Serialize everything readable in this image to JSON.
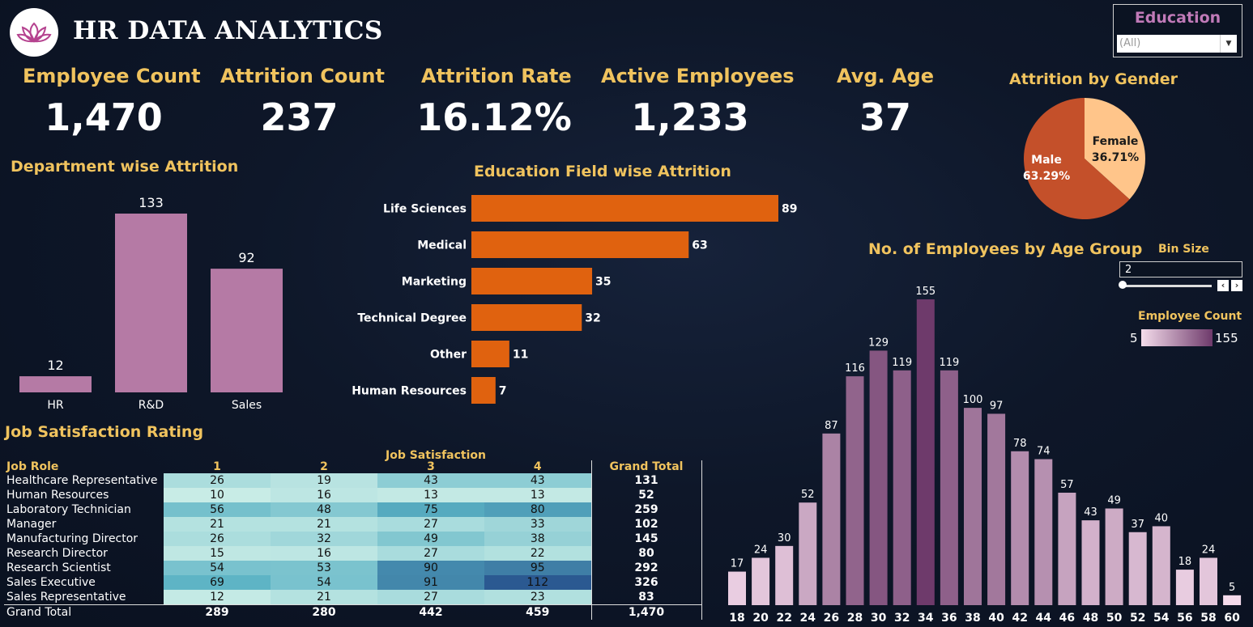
{
  "header": {
    "title": "HR DATA ANALYTICS"
  },
  "kpis": [
    {
      "label": "Employee Count",
      "value": "1,470"
    },
    {
      "label": "Attrition Count",
      "value": "237"
    },
    {
      "label": "Attrition Rate",
      "value": "16.12%"
    },
    {
      "label": "Active Employees",
      "value": "1,233"
    },
    {
      "label": "Avg. Age",
      "value": "37"
    }
  ],
  "filter": {
    "title": "Education",
    "selected": "(All)"
  },
  "bin": {
    "title": "Bin Size",
    "value": "2"
  },
  "legend": {
    "title": "Employee Count",
    "min": "5",
    "max": "155"
  },
  "colors": {
    "gold": "#f0c35e",
    "dept_bar": "#b57aa5",
    "edu_bar": "#e0620f",
    "male": "#c4502a",
    "female": "#ffc58a"
  },
  "chart_data": [
    {
      "type": "bar",
      "title": "Department wise Attrition",
      "categories": [
        "HR",
        "R&D",
        "Sales"
      ],
      "values": [
        12,
        133,
        92
      ]
    },
    {
      "type": "bar",
      "orientation": "horizontal",
      "title": "Education Field wise Attrition",
      "categories": [
        "Life Sciences",
        "Medical",
        "Marketing",
        "Technical Degree",
        "Other",
        "Human Resources"
      ],
      "values": [
        89,
        63,
        35,
        32,
        11,
        7
      ]
    },
    {
      "type": "pie",
      "title": "Attrition by Gender",
      "labels": [
        "Male",
        "Female"
      ],
      "values": [
        63.29,
        36.71
      ],
      "value_labels": [
        "63.29%",
        "36.71%"
      ]
    },
    {
      "type": "bar",
      "title": "No. of Employees by Age Group",
      "categories": [
        "18",
        "20",
        "22",
        "24",
        "26",
        "28",
        "30",
        "32",
        "34",
        "36",
        "38",
        "40",
        "42",
        "44",
        "46",
        "48",
        "50",
        "52",
        "54",
        "56",
        "58",
        "60"
      ],
      "values": [
        17,
        24,
        30,
        52,
        87,
        116,
        129,
        119,
        155,
        119,
        100,
        97,
        78,
        74,
        57,
        43,
        49,
        37,
        40,
        18,
        24,
        5
      ]
    },
    {
      "type": "table",
      "title": "Job Satisfaction Rating",
      "column_group": "Job Satisfaction",
      "row_header": "Job Role",
      "columns": [
        "1",
        "2",
        "3",
        "4"
      ],
      "total_label": "Grand Total",
      "rows": [
        {
          "role": "Healthcare Representative",
          "values": [
            "26",
            "19",
            "43",
            "43"
          ],
          "total": "131"
        },
        {
          "role": "Human Resources",
          "values": [
            "10",
            "16",
            "13",
            "13"
          ],
          "total": "52"
        },
        {
          "role": "Laboratory Technician",
          "values": [
            "56",
            "48",
            "75",
            "80"
          ],
          "total": "259"
        },
        {
          "role": "Manager",
          "values": [
            "21",
            "21",
            "27",
            "33"
          ],
          "total": "102"
        },
        {
          "role": "Manufacturing Director",
          "values": [
            "26",
            "32",
            "49",
            "38"
          ],
          "total": "145"
        },
        {
          "role": "Research Director",
          "values": [
            "15",
            "16",
            "27",
            "22"
          ],
          "total": "80"
        },
        {
          "role": "Research Scientist",
          "values": [
            "54",
            "53",
            "90",
            "95"
          ],
          "total": "292"
        },
        {
          "role": "Sales Executive",
          "values": [
            "69",
            "54",
            "91",
            "112"
          ],
          "total": "326"
        },
        {
          "role": "Sales Representative",
          "values": [
            "12",
            "21",
            "27",
            "23"
          ],
          "total": "83"
        }
      ],
      "grand_total": {
        "role": "Grand Total",
        "values": [
          "289",
          "280",
          "442",
          "459"
        ],
        "total": "1,470"
      }
    }
  ]
}
